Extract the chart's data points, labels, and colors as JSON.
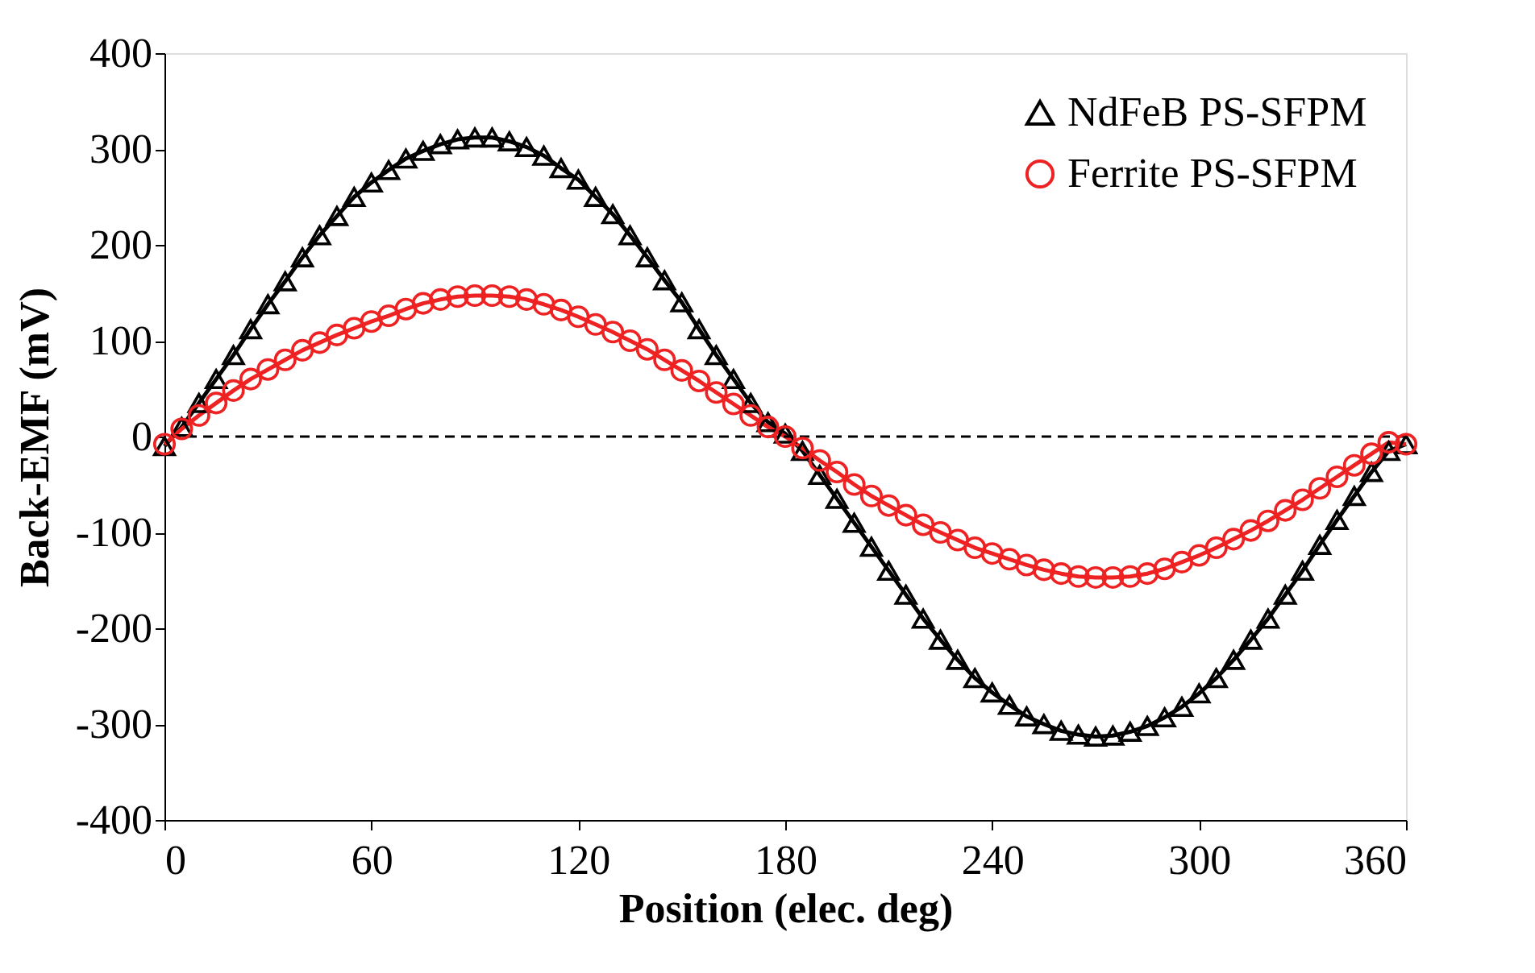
{
  "chart_data": {
    "type": "line",
    "xlabel": "Position (elec. deg)",
    "ylabel": "Back-EMF (mV)",
    "xlim": [
      0,
      360
    ],
    "xticks": [
      0,
      60,
      120,
      180,
      240,
      300,
      360
    ],
    "ylim": [
      -400,
      400
    ],
    "yticks": [
      -400,
      -300,
      -200,
      -100,
      0,
      100,
      200,
      300,
      400
    ],
    "grid": false,
    "legend": "top right",
    "line_style": "solid",
    "x": [
      0,
      5,
      10,
      15,
      20,
      25,
      30,
      35,
      40,
      45,
      50,
      55,
      60,
      65,
      70,
      75,
      80,
      85,
      90,
      95,
      100,
      105,
      110,
      115,
      120,
      125,
      130,
      135,
      140,
      145,
      150,
      155,
      160,
      165,
      170,
      175,
      180,
      185,
      190,
      195,
      200,
      205,
      210,
      215,
      220,
      225,
      230,
      235,
      240,
      245,
      250,
      255,
      260,
      265,
      270,
      275,
      280,
      285,
      290,
      295,
      300,
      305,
      310,
      315,
      320,
      325,
      330,
      335,
      340,
      345,
      350,
      355,
      360
    ],
    "series": [
      {
        "name": "NdFeB PS-SFPM",
        "color": "#000000",
        "marker": "triangle",
        "values": [
          -10,
          10,
          35,
          60,
          85,
          112,
          138,
          162,
          187,
          210,
          230,
          250,
          265,
          278,
          290,
          298,
          305,
          310,
          312,
          312,
          308,
          302,
          293,
          280,
          268,
          250,
          232,
          210,
          187,
          163,
          140,
          112,
          85,
          60,
          35,
          15,
          3,
          -15,
          -40,
          -65,
          -90,
          -115,
          -140,
          -165,
          -190,
          -212,
          -233,
          -252,
          -267,
          -280,
          -292,
          -300,
          -307,
          -311,
          -313,
          -312,
          -308,
          -302,
          -293,
          -282,
          -268,
          -252,
          -233,
          -212,
          -190,
          -165,
          -140,
          -113,
          -87,
          -62,
          -37,
          -15,
          -8
        ]
      },
      {
        "name": "Ferrite PS-SFPM",
        "color": "#ee2222",
        "marker": "circle",
        "values": [
          -8,
          8,
          22,
          35,
          48,
          60,
          70,
          80,
          90,
          98,
          106,
          113,
          120,
          126,
          133,
          139,
          143,
          146,
          147,
          147,
          146,
          143,
          138,
          132,
          125,
          117,
          109,
          100,
          91,
          80,
          69,
          58,
          46,
          34,
          22,
          10,
          0,
          -12,
          -25,
          -37,
          -50,
          -62,
          -72,
          -82,
          -92,
          -100,
          -108,
          -116,
          -122,
          -128,
          -134,
          -139,
          -143,
          -146,
          -147,
          -147,
          -146,
          -143,
          -138,
          -131,
          -124,
          -116,
          -107,
          -98,
          -88,
          -77,
          -66,
          -54,
          -42,
          -30,
          -18,
          -6,
          -8
        ]
      }
    ],
    "ref_lines": [
      {
        "axis": "y",
        "value": 0,
        "color": "#000000",
        "line_style": "dashed"
      }
    ]
  }
}
